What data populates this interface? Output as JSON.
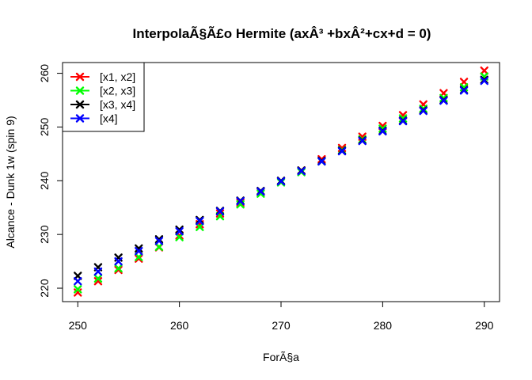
{
  "chart_data": {
    "type": "scatter",
    "title": "InterpolaÃ§Ã£o Hermite (axÂ³ +bxÂ²+cx+d = 0)",
    "xlabel": "ForÃ§a",
    "ylabel": "Alcance - Dunk 1w (spin 9)",
    "xlim": [
      248.5,
      291.5
    ],
    "ylim": [
      217.5,
      262.0
    ],
    "xticks": [
      "250",
      "260",
      "270",
      "280",
      "290"
    ],
    "yticks": [
      "220",
      "230",
      "240",
      "250",
      "260"
    ],
    "legend_position": "top-left",
    "marker": "x",
    "x": [
      250,
      252,
      254,
      256,
      258,
      260,
      262,
      264,
      266,
      268,
      270,
      272,
      274,
      276,
      278,
      280,
      282,
      284,
      286,
      288,
      290
    ],
    "series": [
      {
        "name": "[x1, x2]",
        "color": "#ff0000",
        "values": [
          219.2,
          221.3,
          223.4,
          225.5,
          227.6,
          229.8,
          231.9,
          233.9,
          235.9,
          237.9,
          239.9,
          241.9,
          244.0,
          246.1,
          248.2,
          250.2,
          252.2,
          254.2,
          256.3,
          258.4,
          260.5
        ]
      },
      {
        "name": "[x2, x3]",
        "color": "#00ff00",
        "values": [
          219.8,
          221.8,
          223.7,
          225.8,
          227.7,
          229.5,
          231.4,
          233.4,
          235.6,
          237.6,
          239.7,
          241.6,
          243.6,
          245.7,
          247.7,
          249.7,
          251.6,
          253.4,
          255.4,
          257.4,
          259.4
        ]
      },
      {
        "name": "[x3, x4]",
        "color": "#000000",
        "values": [
          222.3,
          223.9,
          225.7,
          227.4,
          229.1,
          230.9,
          232.7,
          234.4,
          236.3,
          238.1,
          240.0,
          241.9,
          243.7,
          245.6,
          247.5,
          249.3,
          251.2,
          253.1,
          255.0,
          256.9,
          258.8
        ]
      },
      {
        "name": "[x4]",
        "color": "#0000ff",
        "values": [
          221.3,
          223.1,
          225.0,
          226.9,
          228.8,
          230.6,
          232.5,
          234.3,
          236.2,
          238.0,
          239.9,
          241.8,
          243.6,
          245.5,
          247.4,
          249.2,
          251.1,
          253.0,
          254.9,
          256.8,
          258.6
        ]
      }
    ]
  }
}
